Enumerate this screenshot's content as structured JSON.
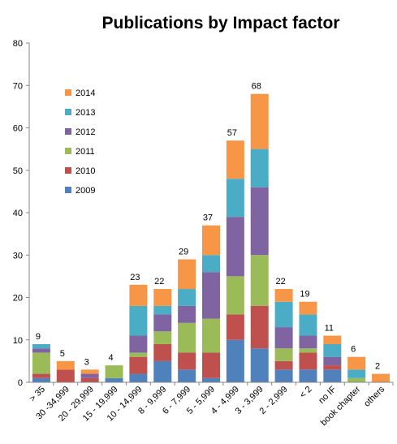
{
  "chart_data": {
    "type": "bar",
    "stacked": true,
    "title": "Publications by Impact factor",
    "xlabel": "",
    "ylabel": "",
    "ylim": [
      0,
      80
    ],
    "yticks": [
      "0",
      "10",
      "20",
      "30",
      "40",
      "50",
      "60",
      "70",
      "80"
    ],
    "grid": false,
    "legend_position": "top-left",
    "categories": [
      "> 35",
      "30 -34,999",
      "20 - 29,999",
      "15 - 19,999",
      "10 - 14,999",
      "8 - 9,999",
      "6 - 7,999",
      "5 - 5,999",
      "4 - 4,999",
      "3 - 3,999",
      "2 - 2,999",
      "< 2",
      "no IF",
      "book chapter",
      "others"
    ],
    "totals": [
      "9",
      "5",
      "3",
      "4",
      "23",
      "22",
      "29",
      "37",
      "57",
      "68",
      "22",
      "19",
      "11",
      "6",
      "2"
    ],
    "series": [
      {
        "name": "2009",
        "color": "#4f81bd",
        "values": [
          1,
          0,
          0,
          1,
          2,
          5,
          3,
          1,
          10,
          8,
          3,
          3,
          3,
          0,
          0
        ]
      },
      {
        "name": "2010",
        "color": "#c0504d",
        "values": [
          1,
          3,
          1,
          0,
          4,
          4,
          4,
          6,
          6,
          10,
          2,
          4,
          1,
          0,
          0
        ]
      },
      {
        "name": "2011",
        "color": "#9bbb59",
        "values": [
          5,
          0,
          0,
          3,
          1,
          3,
          7,
          8,
          9,
          12,
          3,
          1,
          0,
          1,
          0
        ]
      },
      {
        "name": "2012",
        "color": "#8064a2",
        "values": [
          1,
          0,
          1,
          0,
          4,
          4,
          4,
          11,
          14,
          16,
          5,
          3,
          2,
          0,
          0
        ]
      },
      {
        "name": "2013",
        "color": "#4bacc6",
        "values": [
          1,
          0,
          0,
          0,
          7,
          2,
          4,
          4,
          9,
          9,
          6,
          5,
          3,
          2,
          0
        ]
      },
      {
        "name": "2014",
        "color": "#f79646",
        "values": [
          0,
          2,
          1,
          0,
          5,
          4,
          7,
          7,
          9,
          13,
          3,
          3,
          2,
          3,
          2
        ]
      }
    ],
    "axis_color": "#868686"
  }
}
